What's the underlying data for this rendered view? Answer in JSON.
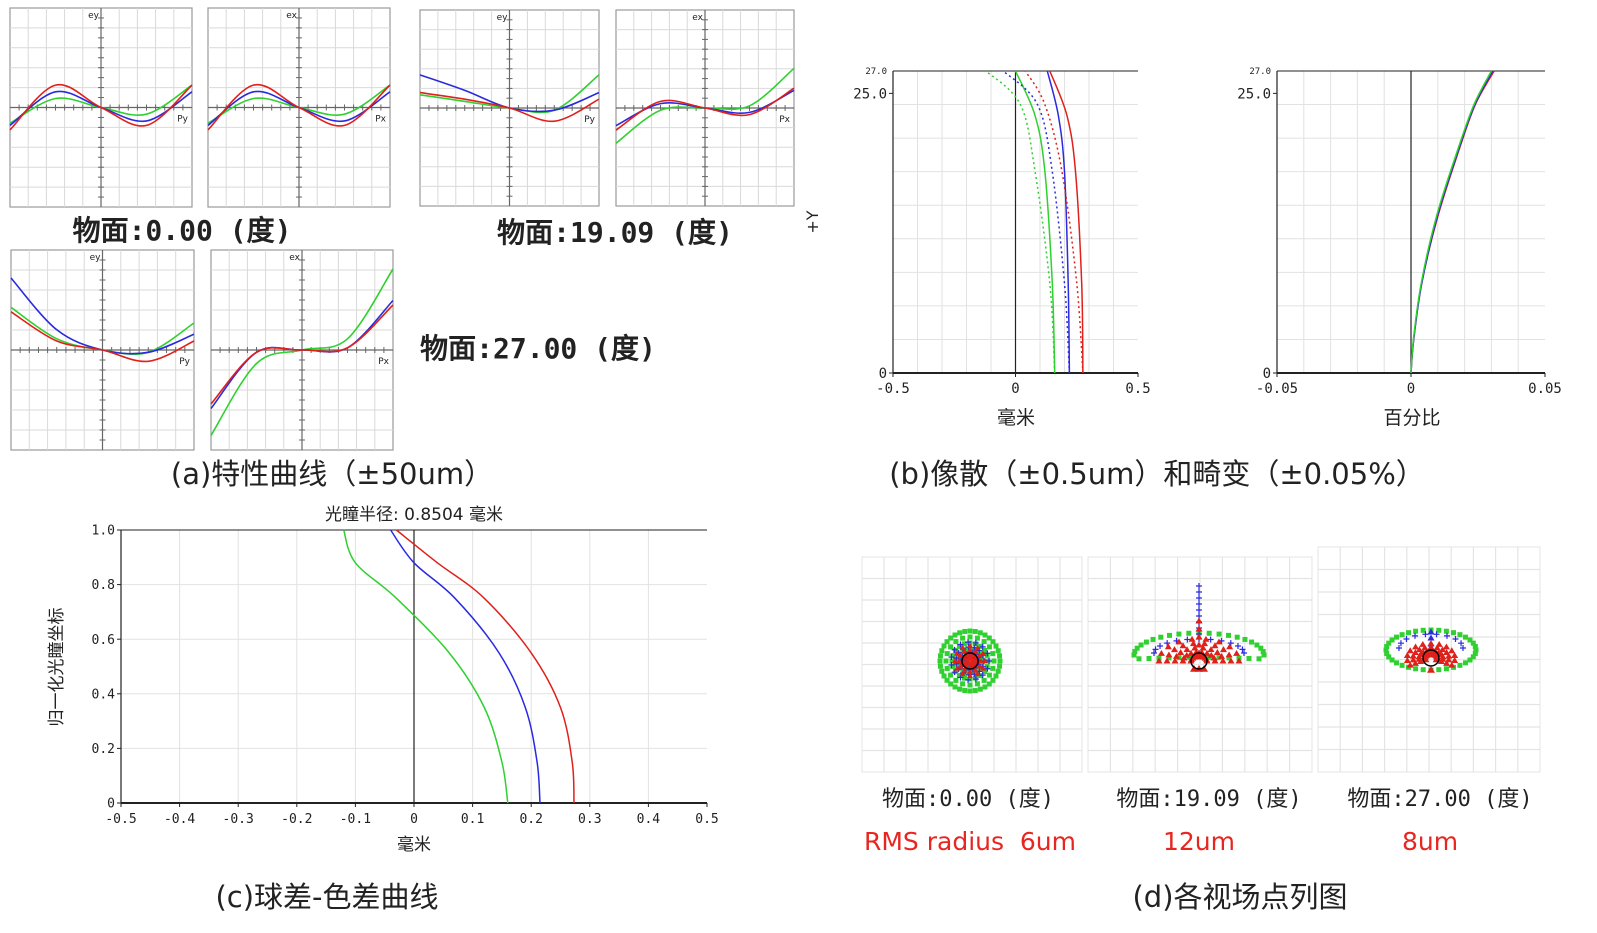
{
  "colors": {
    "red": "#e0201a",
    "blue": "#2a2ae0",
    "green": "#2fd02f",
    "axis": "#222222",
    "grid": "#d9d9d9",
    "panel_border": "#9a9a9a"
  },
  "captions": {
    "a": "(a)特性曲线（±50um）",
    "b": "(b)像散（±0.5um）和畸变（±0.05%）",
    "c": "(c)球差-色差曲线",
    "d": "(d)各视场点列图"
  },
  "fan_labels": {
    "ey": "ey",
    "ex": "ex",
    "py": "Py",
    "px": "Px"
  },
  "chart_data": [
    {
      "id": "ray_fan",
      "type": "line",
      "title": "(a)特性曲线（±50um）",
      "scale": "±50um",
      "fields": [
        {
          "label": "物面:0.00 (度)",
          "ey": {
            "red": [
              -0.5,
              0.5,
              0,
              -0.4,
              0.5
            ],
            "blue": [
              -0.4,
              0.35,
              0,
              -0.3,
              0.35
            ],
            "green": [
              -0.35,
              0.2,
              0,
              -0.15,
              0.5
            ]
          },
          "ex": {
            "red": [
              -0.5,
              0.5,
              0,
              -0.4,
              0.5
            ],
            "blue": [
              -0.4,
              0.35,
              0,
              -0.3,
              0.35
            ],
            "green": [
              -0.35,
              0.2,
              0,
              -0.15,
              0.5
            ]
          }
        },
        {
          "label": "物面:19.09 (度)",
          "ey": {
            "red": [
              0.35,
              0.2,
              0,
              -0.3,
              0.2
            ],
            "blue": [
              0.75,
              0.4,
              0,
              -0.05,
              0.35
            ],
            "green": [
              0.3,
              0.15,
              0,
              -0.05,
              0.75
            ]
          },
          "ex": {
            "red": [
              -0.5,
              0.15,
              0,
              -0.15,
              0.45
            ],
            "blue": [
              -0.4,
              0.1,
              0,
              -0.1,
              0.4
            ],
            "green": [
              -0.8,
              -0.05,
              0,
              0.05,
              0.9
            ]
          }
        },
        {
          "label": "物面:27.00 (度)",
          "ey": {
            "red": [
              0.85,
              0.2,
              0,
              -0.25,
              0.2
            ],
            "blue": [
              1.6,
              0.45,
              0,
              -0.05,
              0.35
            ],
            "green": [
              0.95,
              0.25,
              0,
              -0.05,
              0.6
            ]
          },
          "ex": {
            "red": [
              -1.2,
              -0.05,
              0,
              0.05,
              1.0
            ],
            "blue": [
              -1.3,
              -0.05,
              0,
              0.05,
              1.1
            ],
            "green": [
              -1.9,
              -0.3,
              0,
              0.25,
              1.8
            ]
          }
        }
      ]
    },
    {
      "id": "astigmatism",
      "type": "line",
      "xlabel": "毫米",
      "ylabel": "+Y",
      "xlim": [
        -0.5,
        0.5
      ],
      "ylim": [
        0,
        27.0
      ],
      "x_ticks": [
        "-0.5",
        "0",
        "0.5"
      ],
      "y_ticks": [
        "0",
        "25.0"
      ],
      "y_max_label": "27.0",
      "series": [
        {
          "color": "red",
          "style": "solid",
          "points": [
            [
              0.275,
              0
            ],
            [
              0.27,
              8
            ],
            [
              0.245,
              18
            ],
            [
              0.21,
              23
            ],
            [
              0.14,
              27
            ]
          ]
        },
        {
          "color": "blue",
          "style": "solid",
          "points": [
            [
              0.22,
              0
            ],
            [
              0.215,
              8
            ],
            [
              0.2,
              18
            ],
            [
              0.175,
              23
            ],
            [
              0.13,
              27
            ]
          ]
        },
        {
          "color": "green",
          "style": "solid",
          "points": [
            [
              0.16,
              0
            ],
            [
              0.15,
              8
            ],
            [
              0.12,
              18
            ],
            [
              0.08,
              23
            ],
            [
              0.0,
              27
            ]
          ]
        },
        {
          "color": "red",
          "style": "dashed",
          "points": [
            [
              0.275,
              0
            ],
            [
              0.25,
              8
            ],
            [
              0.19,
              18
            ],
            [
              0.12,
              24
            ],
            [
              0.04,
              27
            ]
          ]
        },
        {
          "color": "blue",
          "style": "dashed",
          "points": [
            [
              0.22,
              0
            ],
            [
              0.2,
              8
            ],
            [
              0.15,
              18
            ],
            [
              0.09,
              24
            ],
            [
              -0.05,
              27
            ]
          ]
        },
        {
          "color": "green",
          "style": "dashed",
          "points": [
            [
              0.16,
              0
            ],
            [
              0.14,
              8
            ],
            [
              0.08,
              18
            ],
            [
              0.02,
              24
            ],
            [
              -0.12,
              27
            ]
          ]
        }
      ]
    },
    {
      "id": "distortion",
      "type": "line",
      "xlabel": "百分比",
      "xlim": [
        -0.05,
        0.05
      ],
      "ylim": [
        0,
        27.0
      ],
      "x_ticks": [
        "-0.05",
        "0",
        "0.05"
      ],
      "y_ticks": [
        "0",
        "25.0"
      ],
      "y_max_label": "27.0",
      "series": [
        {
          "color": "red",
          "points": [
            [
              0,
              0
            ],
            [
              0.001,
              3
            ],
            [
              0.004,
              8
            ],
            [
              0.01,
              14
            ],
            [
              0.018,
              20
            ],
            [
              0.024,
              24
            ],
            [
              0.031,
              27
            ]
          ]
        },
        {
          "color": "blue",
          "points": [
            [
              0,
              0
            ],
            [
              0.001,
              3
            ],
            [
              0.004,
              8
            ],
            [
              0.0098,
              14
            ],
            [
              0.0178,
              20
            ],
            [
              0.0238,
              24
            ],
            [
              0.0305,
              27
            ]
          ]
        },
        {
          "color": "green",
          "points": [
            [
              0,
              0
            ],
            [
              0.0009,
              3
            ],
            [
              0.0038,
              8
            ],
            [
              0.0095,
              14
            ],
            [
              0.0175,
              20
            ],
            [
              0.0235,
              24
            ],
            [
              0.03,
              27
            ]
          ]
        }
      ]
    },
    {
      "id": "spherical",
      "type": "line",
      "title": "光瞳半径: 0.8504 毫米",
      "xlabel": "毫米",
      "ylabel": "归一化光瞳坐标",
      "xlim": [
        -0.5,
        0.5
      ],
      "ylim": [
        0,
        1.0
      ],
      "x_ticks": [
        "-0.5",
        "-0.4",
        "-0.3",
        "-0.2",
        "-0.1",
        "0",
        "0.1",
        "0.2",
        "0.3",
        "0.4",
        "0.5"
      ],
      "y_ticks": [
        "0",
        "0.2",
        "0.4",
        "0.6",
        "0.8",
        "1.0"
      ],
      "series": [
        {
          "color": "red",
          "points": [
            [
              0.273,
              0
            ],
            [
              0.27,
              0.15
            ],
            [
              0.25,
              0.35
            ],
            [
              0.2,
              0.55
            ],
            [
              0.12,
              0.75
            ],
            [
              0.04,
              0.88
            ],
            [
              -0.03,
              1.0
            ]
          ]
        },
        {
          "color": "blue",
          "points": [
            [
              0.215,
              0
            ],
            [
              0.21,
              0.15
            ],
            [
              0.19,
              0.35
            ],
            [
              0.145,
              0.55
            ],
            [
              0.07,
              0.75
            ],
            [
              0.0,
              0.88
            ],
            [
              -0.04,
              1.0
            ]
          ]
        },
        {
          "color": "green",
          "points": [
            [
              0.16,
              0
            ],
            [
              0.15,
              0.15
            ],
            [
              0.12,
              0.35
            ],
            [
              0.06,
              0.55
            ],
            [
              -0.03,
              0.75
            ],
            [
              -0.1,
              0.88
            ],
            [
              -0.12,
              1.0
            ]
          ]
        }
      ]
    },
    {
      "id": "spot_diagrams",
      "type": "scatter",
      "title": "(d)各视场点列图",
      "fields": [
        {
          "label": "物面:0.00 (度)",
          "rms": "RMS radius  6um"
        },
        {
          "label": "物面:19.09 (度)",
          "rms": "12um"
        },
        {
          "label": "物面:27.00 (度)",
          "rms": "8um"
        }
      ]
    }
  ]
}
